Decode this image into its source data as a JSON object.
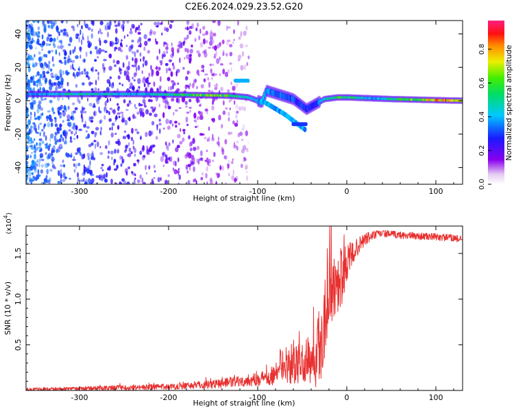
{
  "figure_title": "C2E6.2024.029.23.52.G20",
  "chart_data": [
    {
      "type": "heatmap",
      "name": "spectrogram",
      "xlabel": "Height of straight line (km)",
      "ylabel": "Frequency (Hz)",
      "xlim": [
        -360,
        130
      ],
      "ylim": [
        -50,
        48
      ],
      "xticks": [
        -300,
        -200,
        -100,
        0,
        100
      ],
      "xtick_labels": [
        "-300",
        "-200",
        "-100",
        "0",
        "100"
      ],
      "yticks": [
        -40,
        -20,
        0,
        20,
        40
      ],
      "ytick_labels": [
        "-40",
        "-20",
        "0",
        "20",
        "40"
      ],
      "grid": false,
      "colorbar": {
        "label": "Normalized spectral amplitude",
        "range": [
          0,
          0.97
        ],
        "ticks": [
          0.0,
          0.2,
          0.4,
          0.6,
          0.8
        ],
        "tick_labels": [
          "0.0",
          "0.2",
          "0.4",
          "0.6",
          "0.8"
        ],
        "colormap": "rainbow (white, violet, blue, cyan, green, yellow, red, magenta)"
      },
      "main_band": {
        "frequency_hz": [
          [
            -355,
            4
          ],
          [
            -230,
            4
          ],
          [
            -130,
            3
          ],
          [
            -110,
            2
          ],
          [
            -95,
            -1
          ],
          [
            -90,
            6
          ],
          [
            -60,
            1
          ],
          [
            -45,
            -5
          ],
          [
            -35,
            -2
          ],
          [
            -25,
            1
          ],
          [
            -10,
            2
          ],
          [
            0,
            2
          ],
          [
            50,
            1
          ],
          [
            130,
            0
          ]
        ],
        "peak_amplitude": [
          [
            -355,
            0.4
          ],
          [
            -300,
            0.55
          ],
          [
            -230,
            0.45
          ],
          [
            -150,
            0.75
          ],
          [
            -110,
            0.5
          ],
          [
            -80,
            0.4
          ],
          [
            -40,
            0.3
          ],
          [
            -10,
            0.65
          ],
          [
            30,
            0.45
          ],
          [
            100,
            0.85
          ],
          [
            130,
            0.9
          ]
        ]
      },
      "annotations": [
        {
          "x_range": [
            -125,
            -110
          ],
          "frequency_hz": 12,
          "amplitude": 0.4
        },
        {
          "x_range": [
            -60,
            -45
          ],
          "frequency_hz": -14,
          "amplitude": 0.3
        }
      ]
    },
    {
      "type": "line",
      "name": "snr",
      "xlabel": "Height of straight line (km)",
      "ylabel": "SNR (10 * v/v)",
      "y_multiplier": "(x10^4)",
      "xlim": [
        -360,
        130
      ],
      "ylim": [
        0,
        1.8
      ],
      "xticks": [
        -300,
        -200,
        -100,
        0,
        100
      ],
      "xtick_labels": [
        "-300",
        "-200",
        "-100",
        "0",
        "100"
      ],
      "yticks": [
        0.5,
        1.0,
        1.5
      ],
      "ytick_labels": [
        "0.5",
        "1.0",
        "1.5"
      ],
      "color": "#e8302f",
      "grid": false,
      "series": [
        {
          "x": [
            -360,
            -300,
            -250,
            -200,
            -150,
            -100,
            -80,
            -60,
            -45,
            -35,
            -28,
            -24,
            -20,
            -15,
            -10,
            -5,
            0,
            10,
            20,
            30,
            40,
            60,
            80,
            100,
            120,
            130
          ],
          "y": [
            0.01,
            0.02,
            0.03,
            0.04,
            0.07,
            0.12,
            0.18,
            0.26,
            0.32,
            0.38,
            0.55,
            0.9,
            1.1,
            1.15,
            1.2,
            1.25,
            1.4,
            1.55,
            1.65,
            1.7,
            1.72,
            1.7,
            1.69,
            1.68,
            1.67,
            1.65
          ],
          "noise_amplitude": [
            0.02,
            0.02,
            0.03,
            0.03,
            0.05,
            0.07,
            0.12,
            0.2,
            0.25,
            0.35,
            0.5,
            0.5,
            0.45,
            0.35,
            0.35,
            0.3,
            0.2,
            0.1,
            0.08,
            0.05,
            0.04,
            0.04,
            0.04,
            0.04,
            0.04,
            0.04
          ]
        }
      ]
    }
  ]
}
